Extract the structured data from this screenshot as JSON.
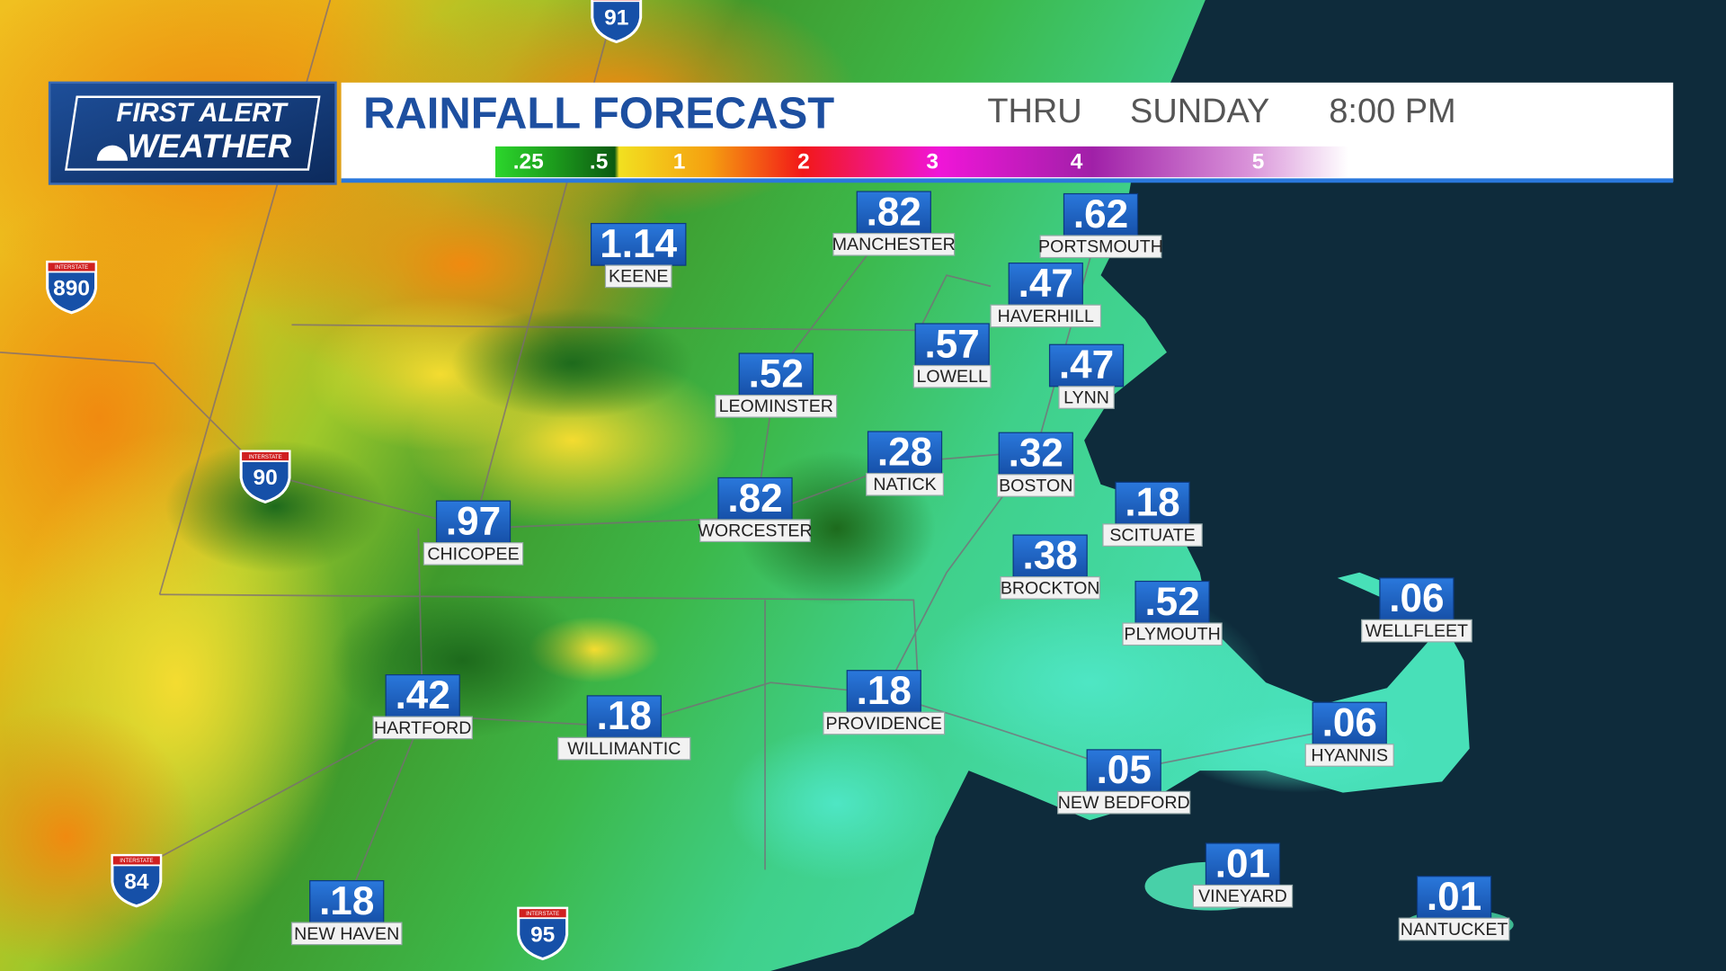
{
  "header": {
    "logo_line1": "FIRST ALERT",
    "logo_line2": "WEATHER",
    "title": "RAINFALL FORECAST",
    "thru": "THRU",
    "day": "SUNDAY",
    "time": "8:00 PM"
  },
  "legend": {
    "labels": [
      ".25",
      ".5",
      "1",
      "2",
      "3",
      "4",
      "5"
    ]
  },
  "cities": [
    {
      "name": "KEENE",
      "amount": "1.14"
    },
    {
      "name": "MANCHESTER",
      "amount": ".82"
    },
    {
      "name": "PORTSMOUTH",
      "amount": ".62"
    },
    {
      "name": "HAVERHILL",
      "amount": ".47"
    },
    {
      "name": "LOWELL",
      "amount": ".57"
    },
    {
      "name": "LYNN",
      "amount": ".47"
    },
    {
      "name": "LEOMINSTER",
      "amount": ".52"
    },
    {
      "name": "NATICK",
      "amount": ".28"
    },
    {
      "name": "BOSTON",
      "amount": ".32"
    },
    {
      "name": "WORCESTER",
      "amount": ".82"
    },
    {
      "name": "CHICOPEE",
      "amount": ".97"
    },
    {
      "name": "SCITUATE",
      "amount": ".18"
    },
    {
      "name": "BROCKTON",
      "amount": ".38"
    },
    {
      "name": "PLYMOUTH",
      "amount": ".52"
    },
    {
      "name": "WELLFLEET",
      "amount": ".06"
    },
    {
      "name": "PROVIDENCE",
      "amount": ".18"
    },
    {
      "name": "HARTFORD",
      "amount": ".42"
    },
    {
      "name": "WILLIMANTIC",
      "amount": ".18"
    },
    {
      "name": "HYANNIS",
      "amount": ".06"
    },
    {
      "name": "NEW BEDFORD",
      "amount": ".05"
    },
    {
      "name": "VINEYARD",
      "amount": ".01"
    },
    {
      "name": "NANTUCKET",
      "amount": ".01"
    },
    {
      "name": "NEW HAVEN",
      "amount": ".18"
    }
  ],
  "interstates": {
    "marker": "INTERSTATE",
    "routes": [
      "91",
      "890",
      "90",
      "84",
      "95"
    ]
  }
}
